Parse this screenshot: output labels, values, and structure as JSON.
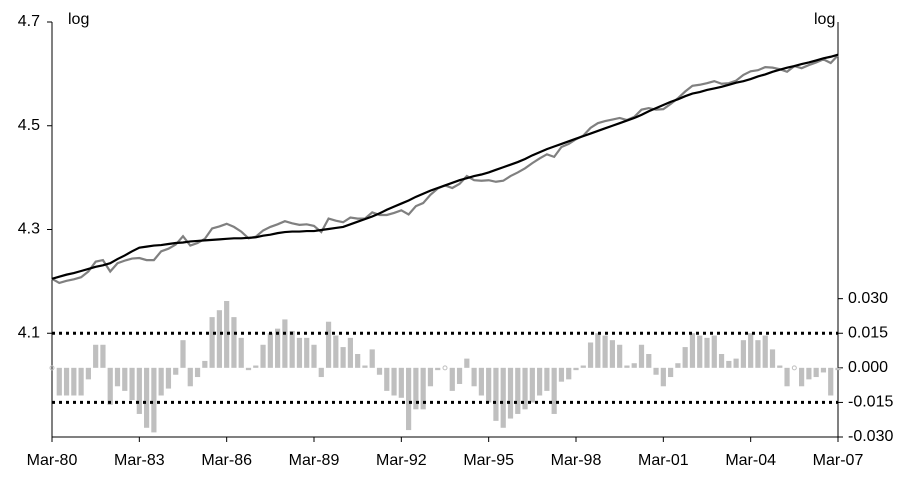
{
  "chart_data": {
    "type": "line",
    "y_label": "log",
    "y2_label": "log",
    "categories": [
      "Mar-80",
      null,
      null,
      null,
      null,
      null,
      null,
      null,
      null,
      null,
      null,
      null,
      "Mar-83",
      null,
      null,
      null,
      null,
      null,
      null,
      null,
      null,
      null,
      null,
      null,
      "Mar-86",
      null,
      null,
      null,
      null,
      null,
      null,
      null,
      null,
      null,
      null,
      null,
      "Mar-89",
      null,
      null,
      null,
      null,
      null,
      null,
      null,
      null,
      null,
      null,
      null,
      "Mar-92",
      null,
      null,
      null,
      null,
      null,
      null,
      null,
      null,
      null,
      null,
      null,
      "Mar-95",
      null,
      null,
      null,
      null,
      null,
      null,
      null,
      null,
      null,
      null,
      null,
      "Mar-98",
      null,
      null,
      null,
      null,
      null,
      null,
      null,
      null,
      null,
      null,
      null,
      "Mar-01",
      null,
      null,
      null,
      null,
      null,
      null,
      null,
      null,
      null,
      null,
      null,
      "Mar-04",
      null,
      null,
      null,
      null,
      null,
      null,
      null,
      null,
      null,
      null,
      null,
      "Mar-07"
    ],
    "ylim": [
      3.9,
      4.7
    ],
    "yticks": [
      4.1,
      4.3,
      4.5,
      4.7
    ],
    "y2lim": [
      -0.03,
      0.15
    ],
    "y2ticks": [
      {
        "value": 0.03,
        "label": "0.030"
      },
      {
        "value": 0.015,
        "label": "0.015"
      },
      {
        "value": 0,
        "label": "0.000"
      },
      {
        "value": -0.015,
        "label": "-0.015"
      },
      {
        "value": -0.03,
        "label": "-0.030"
      }
    ],
    "hlines": [
      {
        "value": 0.015,
        "axis": "y2",
        "color": "#000000"
      },
      {
        "value": -0.015,
        "axis": "y2",
        "color": "#000000"
      }
    ],
    "series": [
      {
        "type": "line",
        "color": "#808080",
        "values": [
          4.205,
          4.197,
          4.201,
          4.204,
          4.208,
          4.219,
          4.238,
          4.241,
          4.219,
          4.235,
          4.24,
          4.244,
          4.245,
          4.241,
          4.241,
          4.258,
          4.263,
          4.271,
          4.287,
          4.269,
          4.274,
          4.282,
          4.302,
          4.306,
          4.311,
          4.305,
          4.296,
          4.283,
          4.286,
          4.298,
          4.305,
          4.31,
          4.316,
          4.312,
          4.309,
          4.31,
          4.307,
          4.295,
          4.321,
          4.317,
          4.314,
          4.323,
          4.321,
          4.321,
          4.333,
          4.328,
          4.328,
          4.332,
          4.337,
          4.329,
          4.345,
          4.351,
          4.367,
          4.379,
          4.385,
          4.38,
          4.388,
          4.403,
          4.395,
          4.394,
          4.395,
          4.392,
          4.394,
          4.403,
          4.41,
          4.418,
          4.428,
          4.437,
          4.445,
          4.44,
          4.459,
          4.465,
          4.474,
          4.481,
          4.496,
          4.505,
          4.509,
          4.512,
          4.515,
          4.511,
          4.517,
          4.531,
          4.534,
          4.531,
          4.532,
          4.542,
          4.553,
          4.566,
          4.577,
          4.579,
          4.582,
          4.586,
          4.581,
          4.582,
          4.587,
          4.598,
          4.605,
          4.607,
          4.613,
          4.612,
          4.609,
          4.604,
          4.615,
          4.611,
          4.617,
          4.622,
          4.628,
          4.621,
          4.636
        ]
      },
      {
        "type": "line",
        "color": "#000000",
        "values": [
          4.205,
          4.209,
          4.213,
          4.216,
          4.22,
          4.224,
          4.228,
          4.231,
          4.235,
          4.243,
          4.25,
          4.258,
          4.265,
          4.267,
          4.269,
          4.27,
          4.272,
          4.274,
          4.275,
          4.277,
          4.278,
          4.279,
          4.28,
          4.281,
          4.282,
          4.283,
          4.283,
          4.284,
          4.285,
          4.288,
          4.29,
          4.293,
          4.295,
          4.296,
          4.296,
          4.297,
          4.297,
          4.299,
          4.301,
          4.303,
          4.305,
          4.31,
          4.315,
          4.32,
          4.325,
          4.331,
          4.338,
          4.344,
          4.35,
          4.356,
          4.363,
          4.369,
          4.375,
          4.38,
          4.385,
          4.39,
          4.395,
          4.399,
          4.403,
          4.406,
          4.41,
          4.415,
          4.42,
          4.425,
          4.43,
          4.436,
          4.443,
          4.449,
          4.455,
          4.46,
          4.465,
          4.47,
          4.475,
          4.48,
          4.485,
          4.49,
          4.495,
          4.5,
          4.505,
          4.51,
          4.515,
          4.521,
          4.528,
          4.534,
          4.54,
          4.546,
          4.551,
          4.557,
          4.562,
          4.565,
          4.569,
          4.572,
          4.575,
          4.579,
          4.583,
          4.586,
          4.59,
          4.595,
          4.599,
          4.604,
          4.608,
          4.612,
          4.615,
          4.619,
          4.622,
          4.626,
          4.63,
          4.633,
          4.637
        ]
      },
      {
        "type": "bar",
        "axis": "y2",
        "color": "#bfbfbf",
        "values": [
          0,
          -0.012,
          -0.012,
          -0.012,
          -0.012,
          -0.005,
          0.01,
          0.01,
          -0.016,
          -0.008,
          -0.01,
          -0.014,
          -0.02,
          -0.026,
          -0.028,
          -0.012,
          -0.009,
          -0.003,
          0.012,
          -0.008,
          -0.004,
          0.003,
          0.022,
          0.025,
          0.029,
          0.022,
          0.013,
          -0.001,
          0.001,
          0.01,
          0.015,
          0.017,
          0.021,
          0.016,
          0.013,
          0.013,
          0.01,
          -0.004,
          0.02,
          0.014,
          0.009,
          0.013,
          0.006,
          0.001,
          0.008,
          -0.003,
          -0.01,
          -0.012,
          -0.013,
          -0.027,
          -0.018,
          -0.018,
          -0.008,
          -0.001,
          0,
          -0.01,
          -0.007,
          0.004,
          -0.008,
          -0.012,
          -0.015,
          -0.023,
          -0.026,
          -0.022,
          -0.02,
          -0.018,
          -0.015,
          -0.012,
          -0.01,
          -0.02,
          -0.006,
          -0.005,
          -0.001,
          0.001,
          0.011,
          0.015,
          0.014,
          0.012,
          0.01,
          0.001,
          0.002,
          0.01,
          0.006,
          -0.003,
          -0.008,
          -0.004,
          0.002,
          0.009,
          0.015,
          0.014,
          0.013,
          0.014,
          0.006,
          0.003,
          0.004,
          0.012,
          0.015,
          0.012,
          0.014,
          0.008,
          0.001,
          -0.008,
          0,
          -0.008,
          -0.005,
          -0.004,
          -0.002,
          -0.012,
          -0.001
        ]
      }
    ]
  }
}
